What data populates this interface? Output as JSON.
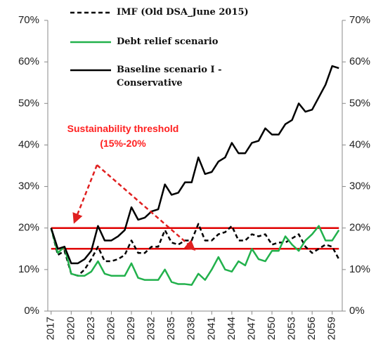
{
  "chart_data": {
    "type": "line",
    "x": [
      2017,
      2018,
      2019,
      2020,
      2021,
      2022,
      2023,
      2024,
      2025,
      2026,
      2027,
      2028,
      2029,
      2030,
      2031,
      2032,
      2033,
      2034,
      2035,
      2036,
      2037,
      2038,
      2039,
      2040,
      2041,
      2042,
      2043,
      2044,
      2045,
      2046,
      2047,
      2048,
      2049,
      2050,
      2051,
      2052,
      2053,
      2054,
      2055,
      2056,
      2057,
      2058,
      2059,
      2060
    ],
    "series": [
      {
        "name": "IMF (Old DSA_June 2015)",
        "color": "#000000",
        "style": "dashed",
        "values": [
          20,
          13.5,
          14.5,
          9,
          8.5,
          10,
          12.5,
          15.5,
          12,
          12,
          12.5,
          13.5,
          17,
          14,
          14,
          15.5,
          15.5,
          19.5,
          16.5,
          16,
          17,
          17,
          21,
          17,
          17,
          18.5,
          19,
          20.5,
          17,
          17,
          18.5,
          18,
          18.5,
          16,
          16.5,
          16.5,
          17.5,
          18.5,
          15.5,
          14,
          15,
          16,
          15.5,
          12.5
        ]
      },
      {
        "name": "Debt relief scenario",
        "color": "#22b14c",
        "style": "solid",
        "values": [
          20,
          14,
          15.5,
          9,
          8.5,
          8.5,
          9.5,
          12,
          9,
          8.5,
          8.5,
          8.5,
          11.5,
          8,
          7.5,
          7.5,
          7.5,
          10,
          7,
          6.5,
          6.5,
          6.3,
          9,
          7.5,
          10,
          13,
          10,
          9.5,
          12,
          11,
          15,
          12.5,
          12,
          14.5,
          14.5,
          18,
          16,
          14.5,
          17,
          18.5,
          20.5,
          17,
          17,
          19.5
        ]
      },
      {
        "name": "Baseline scenario I - Conservative",
        "color": "#000000",
        "style": "solid",
        "values": [
          20,
          15,
          15.5,
          11.5,
          11.5,
          12.5,
          14.5,
          20.5,
          17,
          17,
          18,
          19.5,
          25,
          22,
          22.5,
          24,
          24.5,
          30.5,
          28,
          28.5,
          31,
          31,
          37,
          33,
          33.5,
          36,
          37,
          40.5,
          38,
          38,
          40.5,
          41,
          44,
          42.5,
          42.5,
          45,
          46,
          50,
          48,
          48.5,
          51.5,
          54.5,
          59,
          58.5
        ]
      }
    ],
    "threshold_lines": [
      15,
      20
    ],
    "threshold_color": "#e00000",
    "annotation": "Sustainability threshold (15%-20%",
    "xlim": [
      2016.5,
      2060.5
    ],
    "xticks": [
      2017,
      2020,
      2023,
      2026,
      2029,
      2032,
      2035,
      2038,
      2041,
      2044,
      2047,
      2050,
      2053,
      2056,
      2059
    ],
    "ylim": [
      0,
      70
    ],
    "yticks": [
      {
        "value": 0,
        "label": "0%"
      },
      {
        "value": 10,
        "label": "10%"
      },
      {
        "value": 20,
        "label": "20%"
      },
      {
        "value": 30,
        "label": "30%"
      },
      {
        "value": 40,
        "label": "40%"
      },
      {
        "value": 50,
        "label": "50%"
      },
      {
        "value": 60,
        "label": "60%"
      },
      {
        "value": 70,
        "label": "70%"
      }
    ],
    "secondary_axis_mirror": true
  }
}
